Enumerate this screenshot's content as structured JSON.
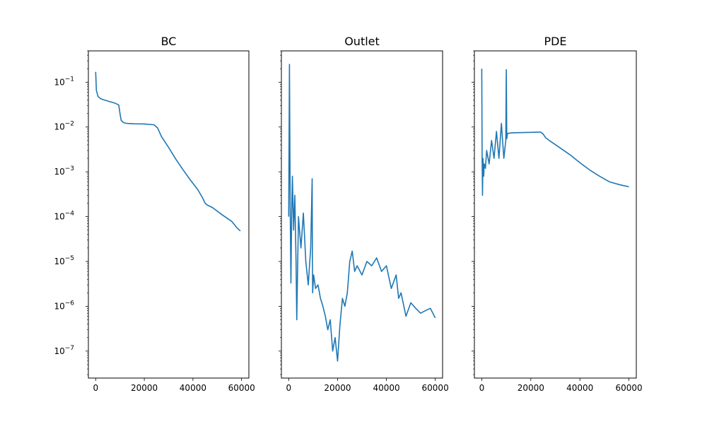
{
  "chart_data": [
    {
      "type": "line",
      "title": "BC",
      "xlabel": "",
      "ylabel": "",
      "xlim": [
        -3000,
        63000
      ],
      "xticks": [
        0,
        20000,
        40000,
        60000
      ],
      "yscale": "log",
      "ylim": [
        2.5e-08,
        0.5
      ],
      "yticks": [
        "10^-7",
        "10^-6",
        "10^-5",
        "10^-4",
        "10^-3",
        "10^-2",
        "10^-1"
      ],
      "show_yticklabels": true,
      "line_color": "#1f77b4",
      "x": [
        0,
        300,
        1000,
        2000,
        3000,
        5000,
        8000,
        9500,
        10000,
        10500,
        11500,
        13000,
        16000,
        20000,
        24000,
        25500,
        27000,
        30000,
        33000,
        36000,
        39000,
        42000,
        44000,
        45000,
        46000,
        48000,
        52000,
        56000,
        58000,
        59500
      ],
      "y": [
        0.17,
        0.065,
        0.048,
        0.043,
        0.041,
        0.038,
        0.034,
        0.031,
        0.02,
        0.014,
        0.0125,
        0.012,
        0.0118,
        0.0117,
        0.0112,
        0.0095,
        0.0062,
        0.0035,
        0.0019,
        0.0011,
        0.00065,
        0.0004,
        0.00026,
        0.0002,
        0.00018,
        0.00016,
        0.00011,
        7.8e-05,
        5.7e-05,
        4.8e-05
      ]
    },
    {
      "type": "line",
      "title": "Outlet",
      "xlabel": "",
      "ylabel": "",
      "xlim": [
        -3000,
        63000
      ],
      "xticks": [
        0,
        20000,
        40000,
        60000
      ],
      "yscale": "log",
      "ylim": [
        2.5e-08,
        0.5
      ],
      "yticks": [
        "10^-7",
        "10^-6",
        "10^-5",
        "10^-4",
        "10^-3",
        "10^-2",
        "10^-1"
      ],
      "show_yticklabels": false,
      "line_color": "#1f77b4",
      "x": [
        0,
        300,
        600,
        900,
        1200,
        1500,
        2000,
        2500,
        3000,
        3300,
        4000,
        5000,
        6000,
        7000,
        8000,
        9000,
        9600,
        9700,
        9800,
        10200,
        11000,
        12000,
        13000,
        14000,
        15000,
        16000,
        17000,
        18000,
        19000,
        20000,
        21000,
        22000,
        23000,
        24000,
        25000,
        26000,
        27000,
        28000,
        30000,
        32000,
        34000,
        36000,
        38000,
        40000,
        42000,
        44000,
        45000,
        46000,
        48000,
        50000,
        52000,
        54000,
        56000,
        58000,
        60000
      ],
      "y": [
        0.0001,
        0.25,
        0.0002,
        3.3e-06,
        0.0001,
        0.0008,
        5e-05,
        0.0003,
        1e-05,
        5e-07,
        0.0001,
        2e-05,
        0.00012,
        1e-05,
        3e-06,
        2e-05,
        0.0007,
        1e-05,
        2e-06,
        5e-06,
        2.5e-06,
        3e-06,
        1.5e-06,
        1e-06,
        6e-07,
        3e-07,
        5e-07,
        1e-07,
        2e-07,
        6e-08,
        4e-07,
        1.5e-06,
        1e-06,
        2e-06,
        1e-05,
        1.7e-05,
        6e-06,
        8e-06,
        5e-06,
        1e-05,
        8e-06,
        1.2e-05,
        6e-06,
        8e-06,
        2.5e-06,
        5e-06,
        1.5e-06,
        2e-06,
        6e-07,
        1.2e-06,
        9e-07,
        7e-07,
        8e-07,
        9e-07,
        5.5e-07
      ]
    },
    {
      "type": "line",
      "title": "PDE",
      "xlabel": "",
      "ylabel": "",
      "xlim": [
        -3000,
        63000
      ],
      "xticks": [
        0,
        20000,
        40000,
        60000
      ],
      "yscale": "log",
      "ylim": [
        2.5e-08,
        0.5
      ],
      "yticks": [
        "10^-7",
        "10^-6",
        "10^-5",
        "10^-4",
        "10^-3",
        "10^-2",
        "10^-1"
      ],
      "show_yticklabels": false,
      "line_color": "#1f77b4",
      "x": [
        0,
        150,
        300,
        500,
        800,
        1000,
        1500,
        2000,
        3000,
        4000,
        5000,
        6000,
        7000,
        8000,
        9000,
        9800,
        10000,
        10200,
        10500,
        12000,
        15000,
        20000,
        24000,
        25000,
        26000,
        28000,
        32000,
        36000,
        40000,
        44000,
        48000,
        52000,
        56000,
        58000,
        60000
      ],
      "y": [
        0.2,
        0.002,
        0.0003,
        0.002,
        0.0008,
        0.0015,
        0.0012,
        0.003,
        0.0015,
        0.005,
        0.002,
        0.008,
        0.002,
        0.012,
        0.002,
        0.005,
        0.19,
        0.0055,
        0.0072,
        0.0074,
        0.0075,
        0.0076,
        0.0077,
        0.007,
        0.0058,
        0.0048,
        0.0034,
        0.0024,
        0.0016,
        0.0011,
        0.0008,
        0.0006,
        0.00052,
        0.00049,
        0.000465
      ]
    }
  ]
}
